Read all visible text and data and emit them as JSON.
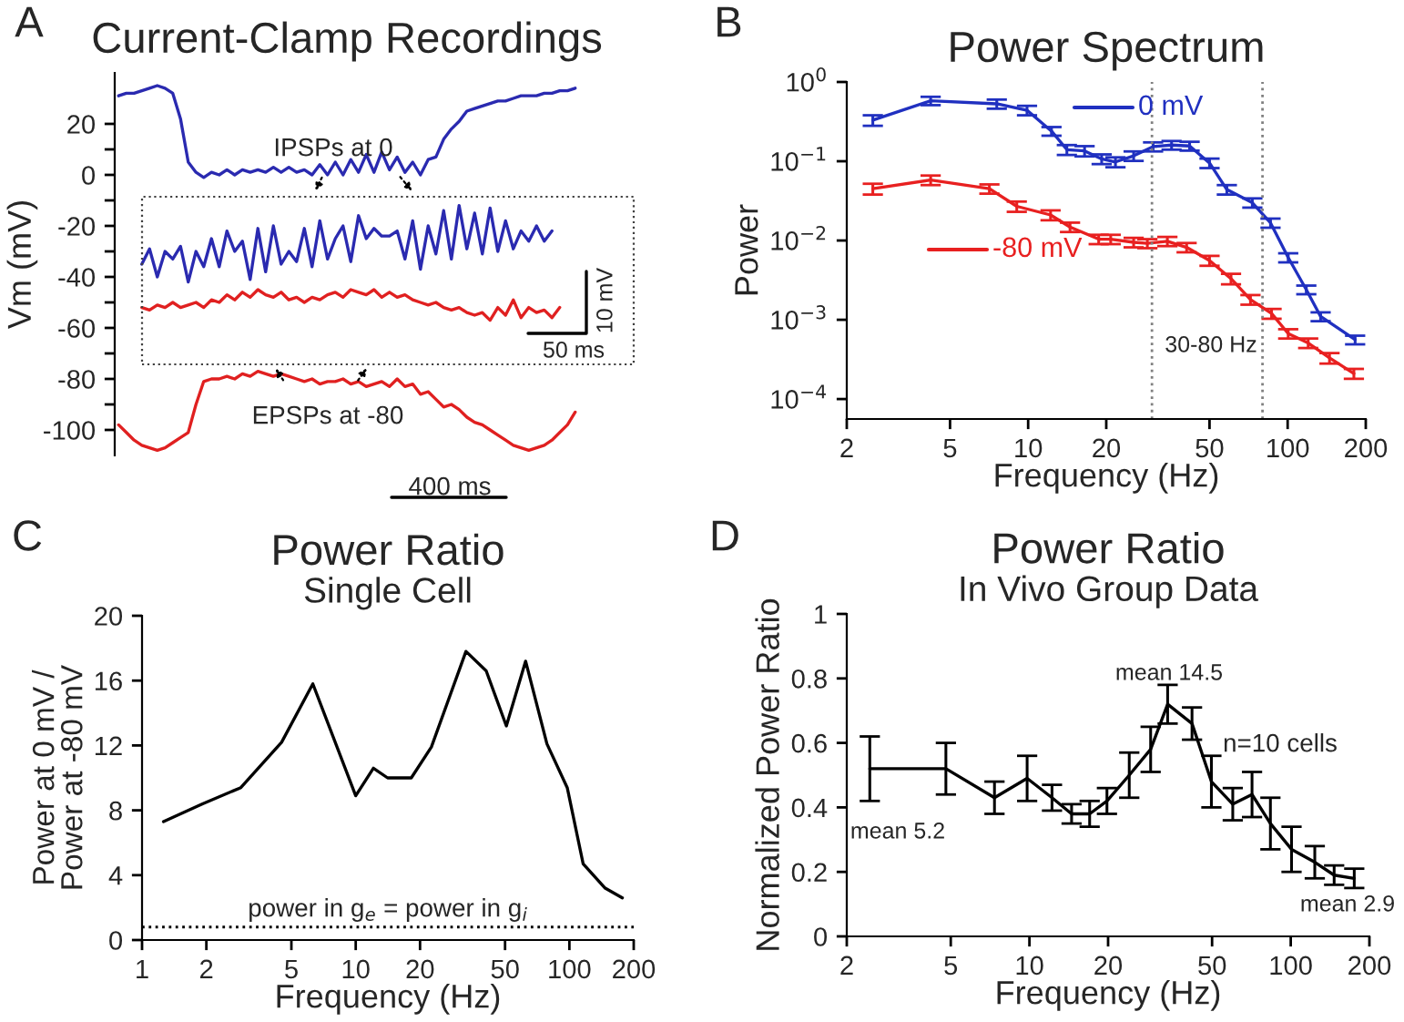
{
  "chart_data": [
    {
      "type": "line",
      "title": "Current-Clamp Recordings",
      "ylabel": "Vm (mV)",
      "categories": [
        null,
        null,
        null,
        null,
        null,
        null,
        null,
        null,
        null,
        null,
        null,
        null,
        null,
        null,
        null,
        null,
        null,
        null,
        null,
        null,
        null,
        null,
        null,
        null,
        null,
        null,
        null,
        null,
        null,
        null,
        null,
        null,
        null,
        null,
        null,
        null,
        null,
        null,
        null,
        null,
        null,
        null,
        null,
        null,
        null,
        null,
        null,
        null,
        null,
        null,
        null,
        null,
        null,
        null,
        null,
        null,
        null,
        null,
        null,
        null
      ],
      "series": [
        {
          "color": "#2a2ab0",
          "values": [
            31,
            32,
            32,
            33,
            34,
            35,
            34,
            32,
            22,
            5,
            1,
            -1,
            1,
            0,
            2,
            0,
            2,
            1,
            2,
            1,
            3,
            1,
            3,
            1,
            2,
            0,
            4,
            0,
            5,
            0,
            6,
            1,
            8,
            1,
            9,
            2,
            7,
            1,
            5,
            0,
            6,
            7,
            14,
            18,
            21,
            25,
            26,
            27,
            28,
            29,
            29,
            30,
            31,
            31,
            31,
            32,
            32,
            33,
            33,
            34
          ]
        },
        {
          "color": "#e02020",
          "values": [
            -98,
            -101,
            -104,
            -106,
            -107,
            -108,
            -107,
            -105,
            -103,
            -101,
            -90,
            -81,
            -80,
            -80,
            -79,
            -80,
            -78,
            -79,
            -77,
            -78,
            -79,
            -78,
            -79,
            -80,
            -81,
            -80,
            -82,
            -81,
            -81,
            -80,
            -82,
            -81,
            -83,
            -82,
            -81,
            -83,
            -80,
            -83,
            -82,
            -86,
            -85,
            -88,
            -91,
            -90,
            -92,
            -95,
            -97,
            -98,
            -100,
            -102,
            -104,
            -106,
            -107,
            -108,
            -107,
            -106,
            -104,
            -101,
            -98,
            -93
          ]
        },
        {
          "color": "#2a2ab0",
          "values": [
            null,
            null,
            null,
            -35,
            -29,
            -40,
            -30,
            -33,
            -28,
            -42,
            -30,
            -36,
            -25,
            -36,
            -22,
            -30,
            -26,
            -41,
            -21,
            -38,
            -20,
            -35,
            -30,
            -34,
            -21,
            -36,
            -18,
            -33,
            -25,
            -20,
            -34,
            -16,
            -25,
            -21,
            -24,
            -24,
            -22,
            -33,
            -18,
            -37,
            -20,
            -31,
            -14,
            -33,
            -12,
            -29,
            -15,
            -31,
            -13,
            -30,
            -18,
            -29,
            -22,
            -26,
            -20,
            -26,
            -22,
            null,
            null,
            null
          ]
        },
        {
          "color": "#e02020",
          "values": [
            null,
            null,
            null,
            -52,
            -53,
            -51,
            -52,
            -50,
            -52,
            -51,
            -50,
            -52,
            -49,
            -50,
            -47,
            -49,
            -46,
            -48,
            -45,
            -47,
            -48,
            -46,
            -49,
            -48,
            -50,
            -48,
            -49,
            -47,
            -46,
            -48,
            -45,
            -46,
            -47,
            -45,
            -48,
            -46,
            -48,
            -47,
            -49,
            -50,
            -51,
            -50,
            -52,
            -53,
            -52,
            -54,
            -55,
            -54,
            -57,
            -52,
            -55,
            -49,
            -56,
            -52,
            -54,
            -53,
            -56,
            -52,
            null,
            null
          ]
        }
      ],
      "ylim": [
        -110,
        40
      ],
      "yticks": [
        -100,
        {
          "value": -90,
          "label": null
        },
        -80,
        {
          "value": -70,
          "label": null
        },
        -60,
        {
          "value": -50,
          "label": null
        },
        -40,
        {
          "value": -30,
          "label": null
        },
        -20,
        {
          "value": -10,
          "label": null
        },
        0,
        {
          "value": 10,
          "label": null
        },
        20
      ],
      "tick_labels": "y",
      "annotations": [
        "A",
        "IPSPs at 0",
        "EPSPs at -80",
        "10 mV",
        "50 ms",
        "400 ms"
      ]
    },
    {
      "type": "line",
      "title": "Power Spectrum",
      "xlabel": "Frequency (Hz)",
      "ylabel": "Power",
      "log": "xy",
      "series": [
        {
          "name": "0 mV",
          "color": "#2030c0",
          "x": [
            2.52,
            4.21,
            7.57,
            9.9,
            12.3,
            14.1,
            16.5,
            19.2,
            21.7,
            25.5,
            30.3,
            35.7,
            41.9,
            50,
            58.3,
            73.1,
            85.9,
            100.5,
            118,
            134,
            182
          ],
          "values": [
            0.33,
            0.58,
            0.53,
            0.44,
            0.24,
            0.14,
            0.135,
            0.107,
            0.098,
            0.117,
            0.153,
            0.16,
            0.156,
            0.095,
            0.044,
            0.03,
            0.0167,
            0.0061,
            0.0024,
            0.0011,
            0.00056
          ],
          "errors": [
            0.05,
            0.07,
            0.07,
            0.06,
            0.03,
            0.02,
            0.02,
            0.015,
            0.014,
            0.016,
            0.02,
            0.02,
            0.02,
            0.013,
            0.006,
            0.004,
            0.0022,
            0.0008,
            0.0003,
            0.00014,
            7e-05
          ]
        },
        {
          "name": "-80 mV",
          "color": "#e82020",
          "x": [
            2.52,
            4.21,
            7.09,
            9.04,
            12.2,
            14.5,
            18.7,
            20.8,
            25.5,
            28.8,
            34.4,
            40.8,
            50,
            60.5,
            71.9,
            86.7,
            100.5,
            120,
            145,
            180
          ],
          "values": [
            0.045,
            0.058,
            0.045,
            0.027,
            0.021,
            0.0148,
            0.0104,
            0.0104,
            0.0095,
            0.0092,
            0.0098,
            0.0082,
            0.0056,
            0.0033,
            0.0018,
            0.0012,
            0.00067,
            0.00051,
            0.00033,
            0.00021
          ],
          "errors": [
            0.007,
            0.008,
            0.006,
            0.004,
            0.003,
            0.002,
            0.0014,
            0.0014,
            0.0013,
            0.0012,
            0.0013,
            0.0011,
            0.0008,
            0.0005,
            0.00025,
            0.00017,
            9e-05,
            7e-05,
            5e-05,
            3e-05
          ]
        }
      ],
      "xlim": [
        2,
        200
      ],
      "xticks": [
        2,
        5,
        10,
        20,
        50,
        100,
        200
      ],
      "ylim": [
        5.6e-05,
        1
      ],
      "yticks": [
        {
          "value": 0.0001,
          "label": "10$^{−4}$"
        },
        {
          "value": 0.001,
          "label": "10$^{−3}$"
        },
        {
          "value": 0.01,
          "label": "10$^{−2}$"
        },
        {
          "value": 0.1,
          "label": "10$^{−1}$"
        },
        {
          "value": 1,
          "label": "10$^{0}$"
        }
      ],
      "legend": "top left",
      "ref_lines": [
        {
          "axis": "x",
          "value": 30,
          "color": "#808080",
          "line_style": "dotted"
        },
        {
          "axis": "x",
          "value": 80,
          "color": "#808080",
          "line_style": "dotted"
        }
      ],
      "annotations": [
        "B",
        "30-80 Hz"
      ]
    },
    {
      "type": "line",
      "title": "Power Ratio",
      "subtitle": "Single Cell",
      "xlabel": "Frequency (Hz)",
      "ylabel": "Power at 0 mV /\nPower at -80 mV",
      "log": "x",
      "series": [
        {
          "color": "#000000",
          "x": [
            1.26,
            1.92,
            2.9,
            4.5,
            6.3,
            10,
            12.1,
            14.1,
            18.2,
            22.6,
            32.8,
            40.8,
            50.7,
            62.4,
            78.5,
            97.7,
            116,
            147,
            177
          ],
          "values": [
            7.3,
            8.4,
            9.4,
            12.2,
            15.8,
            8.9,
            10.6,
            10,
            10,
            11.9,
            17.8,
            16.6,
            13.2,
            17.2,
            12.1,
            9.4,
            4.7,
            3.2,
            2.6
          ]
        }
      ],
      "xlim": [
        1,
        200
      ],
      "xticks": [
        1,
        2,
        5,
        10,
        20,
        50,
        100,
        200
      ],
      "ylim": [
        0,
        20
      ],
      "yticks": [
        0,
        4,
        8,
        12,
        16,
        20
      ],
      "ref_lines": [
        {
          "axis": "y",
          "value": 0.8,
          "label": "power in g$_{e}$ = power in g$_{i}$",
          "color": "#000000",
          "line_style": "dotted"
        }
      ],
      "annotations": [
        "C"
      ]
    },
    {
      "type": "line",
      "title": "Power Ratio",
      "subtitle": "In Vivo Group Data",
      "xlabel": "Frequency (Hz)",
      "ylabel": "Normalized Power Ratio",
      "log": "x",
      "series": [
        {
          "color": "#000000",
          "x": [
            2.45,
            4.79,
            7.35,
            9.8,
            12.2,
            14.5,
            17,
            19.8,
            24.1,
            29.1,
            33.8,
            41.9,
            49.7,
            60,
            71.1,
            83.6,
            100.7,
            123.6,
            146.6,
            175
          ],
          "values": [
            0.52,
            0.52,
            0.43,
            0.49,
            0.43,
            0.38,
            0.38,
            0.42,
            0.5,
            0.58,
            0.72,
            0.66,
            0.48,
            0.41,
            0.44,
            0.35,
            0.27,
            0.23,
            0.19,
            0.18
          ],
          "errors": [
            0.1,
            0.08,
            0.05,
            0.07,
            0.04,
            0.03,
            0.04,
            0.04,
            0.07,
            0.07,
            0.06,
            0.05,
            0.08,
            0.05,
            0.07,
            0.08,
            0.07,
            0.05,
            0.03,
            0.03
          ]
        }
      ],
      "xlim": [
        2,
        200
      ],
      "xticks": [
        2,
        5,
        10,
        20,
        50,
        100,
        200
      ],
      "ylim": [
        0,
        1
      ],
      "yticks": [
        0,
        0.2,
        0.4,
        0.6,
        0.8,
        1
      ],
      "annotations": [
        "D",
        "mean 5.2",
        "mean 14.5",
        "n=10 cells",
        "mean 2.9"
      ]
    }
  ]
}
